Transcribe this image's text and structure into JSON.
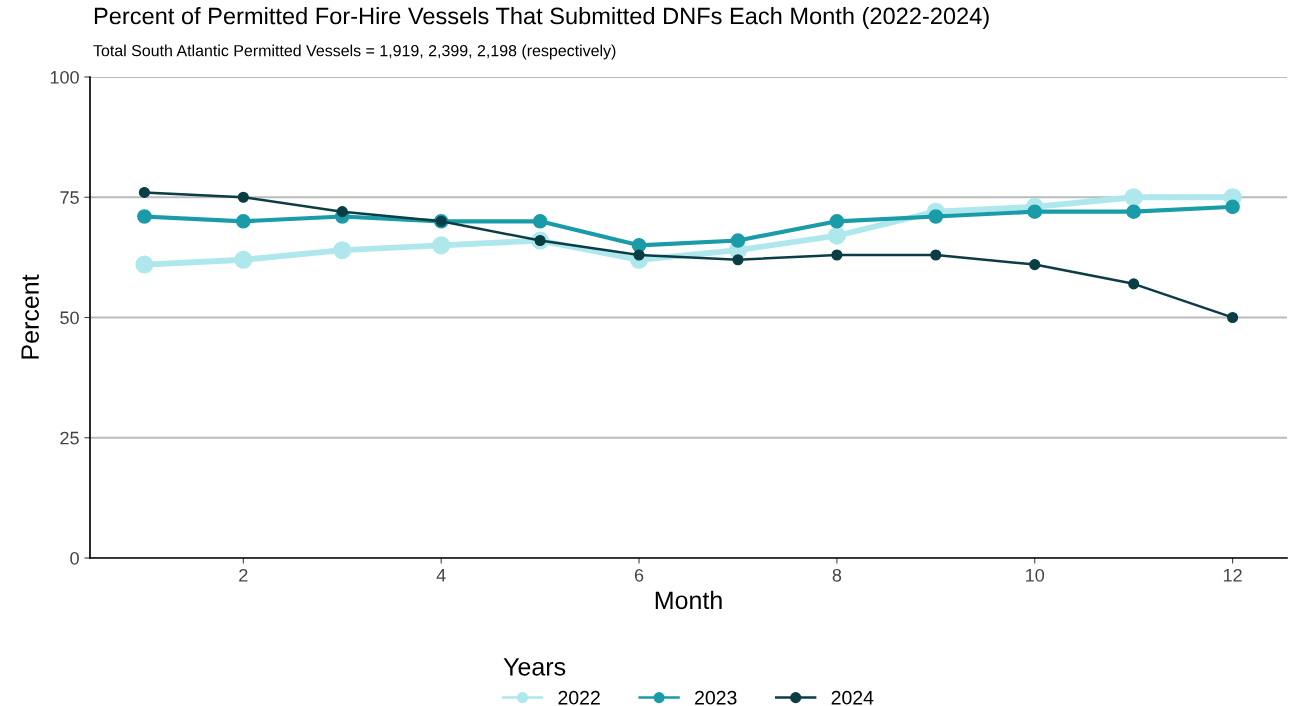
{
  "chart_data": {
    "type": "line",
    "title": "Percent of Permitted For-Hire Vessels That Submitted DNFs Each Month (2022-2024)",
    "subtitle": "Total South Atlantic Permitted Vessels = 1,919, 2,399, 2,198 (respectively)",
    "xlabel": "Month",
    "ylabel": "Percent",
    "legend_title": "Years",
    "x": [
      1,
      2,
      3,
      4,
      5,
      6,
      7,
      8,
      9,
      10,
      11,
      12
    ],
    "series": [
      {
        "name": "2022",
        "color": "#aee8ec",
        "values": [
          61,
          62,
          64,
          65,
          66,
          62,
          64,
          67,
          72,
          73,
          75,
          75
        ]
      },
      {
        "name": "2023",
        "color": "#1a9ba8",
        "values": [
          71,
          70,
          71,
          70,
          70,
          65,
          66,
          70,
          71,
          72,
          72,
          73
        ]
      },
      {
        "name": "2024",
        "color": "#0b3d45",
        "values": [
          76,
          75,
          72,
          70,
          66,
          63,
          62,
          63,
          63,
          61,
          57,
          50
        ]
      }
    ],
    "xlim": [
      0.45,
      12.55
    ],
    "xticks": [
      2,
      4,
      6,
      8,
      10,
      12
    ],
    "ylim": [
      0,
      100
    ],
    "yticks": [
      0,
      25,
      50,
      75,
      100
    ],
    "grid": "y",
    "legend": "bottom",
    "marker": "circle",
    "line_style": "solid"
  }
}
